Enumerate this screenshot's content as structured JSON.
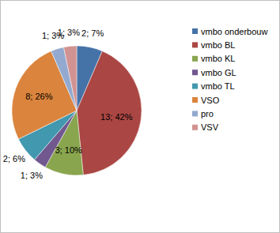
{
  "chart_data": {
    "type": "pie",
    "categories": [
      "vmbo onderbouw",
      "vmbo BL",
      "vmbo KL",
      "vmbo GL",
      "vmbo TL",
      "VSO",
      "pro",
      "VSV"
    ],
    "values": [
      2,
      13,
      3,
      1,
      2,
      8,
      1,
      1
    ],
    "value_labels": [
      "2; 7%",
      "13; 42%",
      "3; 10%",
      "1; 3%",
      "2; 6%",
      "8; 26%",
      "1; 3%",
      "1; 3%"
    ],
    "colors": [
      "#4572a7",
      "#aa4643",
      "#89a54e",
      "#71588f",
      "#4198af",
      "#db843d",
      "#93a9cf",
      "#d19392"
    ],
    "data_labels": true,
    "legend": "right"
  }
}
